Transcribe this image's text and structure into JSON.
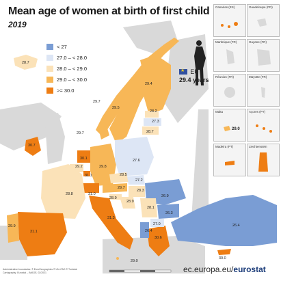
{
  "title": "Mean age of women at birth of first child",
  "subtitle": "2019",
  "legend": [
    {
      "label": "< 27",
      "color": "#7a9dd4"
    },
    {
      "label": "27.0 – < 28.0",
      "color": "#dde6f5"
    },
    {
      "label": "28.0 – < 29.0",
      "color": "#fbe2b8"
    },
    {
      "label": "29.0 – < 30.0",
      "color": "#f7b757"
    },
    {
      "label": ">= 30.0",
      "color": "#ee7d13"
    }
  ],
  "eu": {
    "label": "EU",
    "value": "29.4 years"
  },
  "countries": [
    {
      "value": "28.7"
    },
    {
      "value": "29.4"
    },
    {
      "value": "29.7"
    },
    {
      "value": "29.5"
    },
    {
      "value": "28.2"
    },
    {
      "value": "27.3"
    },
    {
      "value": "29.7"
    },
    {
      "value": "28.7"
    },
    {
      "value": "30.7"
    },
    {
      "value": "30.1"
    },
    {
      "value": "27.6"
    },
    {
      "value": "29.2"
    },
    {
      "value": "29.8"
    },
    {
      "value": "31.1"
    },
    {
      "value": "28.5"
    },
    {
      "value": "27.2"
    },
    {
      "value": "28.8"
    },
    {
      "value": "31.0"
    },
    {
      "value": "29.7"
    },
    {
      "value": "28.3"
    },
    {
      "value": "28.9"
    },
    {
      "value": "28.9"
    },
    {
      "value": "26.9"
    },
    {
      "value": "28.1"
    },
    {
      "value": "26.3"
    },
    {
      "value": "29.9"
    },
    {
      "value": "31.1"
    },
    {
      "value": "31.3"
    },
    {
      "value": "27.0"
    },
    {
      "value": "26.4"
    },
    {
      "value": "26.4"
    },
    {
      "value": "30.6"
    },
    {
      "value": "29.0"
    },
    {
      "value": "30.0"
    }
  ],
  "insets": [
    {
      "name": "Canarias (ES)"
    },
    {
      "name": "Guadeloupe (FR)"
    },
    {
      "name": "Martinique (FR)"
    },
    {
      "name": "Guyane (FR)"
    },
    {
      "name": "Réunion (FR)"
    },
    {
      "name": "Mayotte (FR)"
    },
    {
      "name": "Malta",
      "value": "29.0"
    },
    {
      "name": "Açores (PT)"
    },
    {
      "name": "Madeira (PT)"
    },
    {
      "name": "Liechtenstein"
    }
  ],
  "footer": {
    "credit_1": "Administrative boundaries: © EuroGeographics © UN–FAO © Turkstat",
    "credit_2": "Cartography: Eurostat – IMAGE, 02/2021",
    "website": "ec.europa.eu/",
    "website_bold": "eurostat"
  },
  "colors": {
    "sea": "#ffffff",
    "land_nodata": "#d9d9d9",
    "cls1": "#7a9dd4",
    "cls2": "#dde6f5",
    "cls3": "#fbe2b8",
    "cls4": "#f7b757",
    "cls5": "#ee7d13"
  }
}
